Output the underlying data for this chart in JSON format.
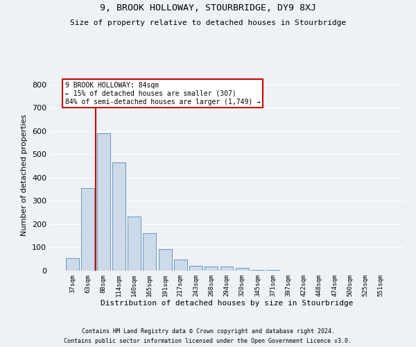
{
  "title": "9, BROOK HOLLOWAY, STOURBRIDGE, DY9 8XJ",
  "subtitle": "Size of property relative to detached houses in Stourbridge",
  "xlabel": "Distribution of detached houses by size in Stourbridge",
  "ylabel": "Number of detached properties",
  "categories": [
    "37sqm",
    "63sqm",
    "88sqm",
    "114sqm",
    "140sqm",
    "165sqm",
    "191sqm",
    "217sqm",
    "243sqm",
    "268sqm",
    "294sqm",
    "320sqm",
    "345sqm",
    "371sqm",
    "397sqm",
    "422sqm",
    "448sqm",
    "474sqm",
    "500sqm",
    "525sqm",
    "551sqm"
  ],
  "values": [
    55,
    355,
    590,
    465,
    232,
    160,
    93,
    47,
    22,
    18,
    18,
    12,
    4,
    2,
    1,
    1,
    1,
    0,
    0,
    0,
    0
  ],
  "bar_color": "#ccdaea",
  "bar_edge_color": "#6699bb",
  "vline_color": "#cc0000",
  "vline_pos": 1.5,
  "annotation_title": "9 BROOK HOLLOWAY: 84sqm",
  "annotation_line1": "← 15% of detached houses are smaller (307)",
  "annotation_line2": "84% of semi-detached houses are larger (1,749) →",
  "annotation_box_color": "#ffffff",
  "annotation_box_edge": "#cc0000",
  "background_color": "#eef2f7",
  "grid_color": "#ffffff",
  "ylim": [
    0,
    820
  ],
  "yticks": [
    0,
    100,
    200,
    300,
    400,
    500,
    600,
    700,
    800
  ],
  "footer1": "Contains HM Land Registry data © Crown copyright and database right 2024.",
  "footer2": "Contains public sector information licensed under the Open Government Licence v3.0."
}
